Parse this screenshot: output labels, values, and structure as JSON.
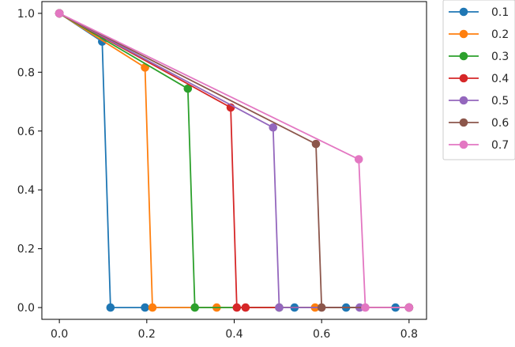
{
  "chart_data": {
    "type": "line",
    "title": "",
    "xlabel": "",
    "ylabel": "",
    "xlim": [
      -0.04,
      0.84
    ],
    "ylim": [
      -0.04,
      1.04
    ],
    "xticks": [
      0.0,
      0.2,
      0.4,
      0.6,
      0.8
    ],
    "yticks": [
      0.0,
      0.2,
      0.4,
      0.6,
      0.8,
      1.0
    ],
    "xtick_labels": [
      "0.0",
      "0.2",
      "0.4",
      "0.6",
      "0.8"
    ],
    "ytick_labels": [
      "0.0",
      "0.2",
      "0.4",
      "0.6",
      "0.8",
      "1.0"
    ],
    "grid": false,
    "legend_position": "outside upper right",
    "series": [
      {
        "name": "0.1",
        "color": "#1f77b4",
        "points": [
          [
            0.0,
            1.0
          ],
          [
            0.098,
            0.904
          ],
          [
            0.117,
            0.0
          ],
          [
            0.196,
            0.0
          ],
          [
            0.538,
            0.0
          ],
          [
            0.656,
            0.0
          ],
          [
            0.769,
            0.0
          ],
          [
            0.8,
            0.0
          ]
        ]
      },
      {
        "name": "0.2",
        "color": "#ff7f0e",
        "points": [
          [
            0.0,
            1.0
          ],
          [
            0.196,
            0.816
          ],
          [
            0.213,
            0.0
          ],
          [
            0.36,
            0.0
          ],
          [
            0.585,
            0.0
          ],
          [
            0.8,
            0.0
          ]
        ]
      },
      {
        "name": "0.3",
        "color": "#2ca02c",
        "points": [
          [
            0.0,
            1.0
          ],
          [
            0.294,
            0.744
          ],
          [
            0.31,
            0.0
          ],
          [
            0.503,
            0.0
          ],
          [
            0.8,
            0.0
          ]
        ]
      },
      {
        "name": "0.4",
        "color": "#d62728",
        "points": [
          [
            0.0,
            1.0
          ],
          [
            0.392,
            0.68
          ],
          [
            0.406,
            0.0
          ],
          [
            0.426,
            0.0
          ],
          [
            0.8,
            0.0
          ]
        ]
      },
      {
        "name": "0.5",
        "color": "#9467bd",
        "points": [
          [
            0.0,
            1.0
          ],
          [
            0.489,
            0.612
          ],
          [
            0.503,
            0.0
          ],
          [
            0.687,
            0.0
          ],
          [
            0.8,
            0.0
          ]
        ]
      },
      {
        "name": "0.6",
        "color": "#8c564b",
        "points": [
          [
            0.0,
            1.0
          ],
          [
            0.587,
            0.556
          ],
          [
            0.6,
            0.0
          ],
          [
            0.8,
            0.0
          ]
        ]
      },
      {
        "name": "0.7",
        "color": "#e377c2",
        "points": [
          [
            0.0,
            1.0
          ],
          [
            0.685,
            0.504
          ],
          [
            0.7,
            0.0
          ],
          [
            0.8,
            0.0
          ]
        ]
      }
    ]
  }
}
